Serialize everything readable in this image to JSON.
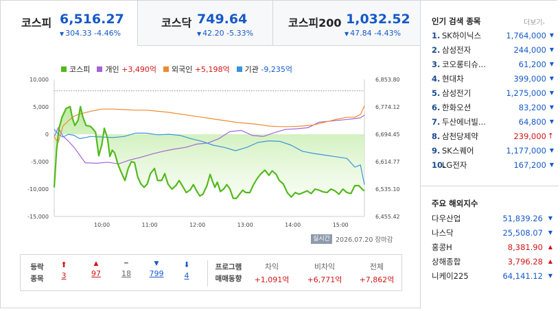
{
  "indices": [
    {
      "name": "코스피",
      "value": "6,516.27",
      "change": "304.33",
      "rate": "-4.46%",
      "active": true
    },
    {
      "name": "코스닥",
      "value": "749.64",
      "change": "42.20",
      "rate": "-5.33%",
      "active": false
    },
    {
      "name": "코스피200",
      "value": "1,032.52",
      "change": "47.84",
      "rate": "-4.43%",
      "active": false
    }
  ],
  "legend": [
    {
      "name": "코스피",
      "value": "",
      "color": "#52b91c"
    },
    {
      "name": "개인",
      "value": "+3,490억",
      "color": "#a364d7"
    },
    {
      "name": "외국인",
      "value": "+5,198억",
      "color": "#ef8a2f"
    },
    {
      "name": "기관",
      "value": "-9,235억",
      "color": "#3a93dd"
    }
  ],
  "chart_data": {
    "type": "line",
    "left_axis": {
      "ticks": [
        "10,000",
        "5,000",
        "0",
        "-5,000",
        "-10,000",
        "-15,000"
      ],
      "ylim": [
        -15000,
        10000
      ]
    },
    "right_axis": {
      "ticks": [
        "6,853.80",
        "6,774.12",
        "6,694.45",
        "6,614.77",
        "6,535.10",
        "6,455.42"
      ],
      "ylim": [
        6455.42,
        6853.8
      ]
    },
    "x_ticks": [
      "10:00",
      "11:00",
      "12:00",
      "13:00",
      "14:00",
      "15:00"
    ],
    "x_range_minutes": [
      540,
      930
    ],
    "reference_line_value": 6820.6,
    "series": [
      {
        "name": "코스피",
        "color": "#52b91c",
        "area": true,
        "axis": "right",
        "points": [
          [
            540,
            6540
          ],
          [
            543,
            6650
          ],
          [
            546,
            6712
          ],
          [
            550,
            6745
          ],
          [
            555,
            6770
          ],
          [
            560,
            6775
          ],
          [
            563,
            6740
          ],
          [
            566,
            6720
          ],
          [
            570,
            6735
          ],
          [
            573,
            6775
          ],
          [
            576,
            6745
          ],
          [
            580,
            6720
          ],
          [
            585,
            6718
          ],
          [
            588,
            6712
          ],
          [
            592,
            6700
          ],
          [
            596,
            6632
          ],
          [
            600,
            6665
          ],
          [
            603,
            6712
          ],
          [
            607,
            6682
          ],
          [
            610,
            6630
          ],
          [
            613,
            6648
          ],
          [
            616,
            6640
          ],
          [
            620,
            6608
          ],
          [
            624,
            6585
          ],
          [
            629,
            6560
          ],
          [
            633,
            6595
          ],
          [
            637,
            6615
          ],
          [
            641,
            6612
          ],
          [
            645,
            6570
          ],
          [
            649,
            6550
          ],
          [
            653,
            6540
          ],
          [
            657,
            6550
          ],
          [
            661,
            6580
          ],
          [
            666,
            6595
          ],
          [
            670,
            6560
          ],
          [
            675,
            6560
          ],
          [
            679,
            6580
          ],
          [
            683,
            6550
          ],
          [
            688,
            6535
          ],
          [
            693,
            6545
          ],
          [
            697,
            6560
          ],
          [
            701,
            6545
          ],
          [
            706,
            6525
          ],
          [
            711,
            6533
          ],
          [
            715,
            6548
          ],
          [
            719,
            6530
          ],
          [
            723,
            6515
          ],
          [
            727,
            6520
          ],
          [
            732,
            6545
          ],
          [
            736,
            6578
          ],
          [
            739,
            6558
          ],
          [
            742,
            6540
          ],
          [
            745,
            6555
          ],
          [
            749,
            6528
          ],
          [
            753,
            6535
          ],
          [
            757,
            6548
          ],
          [
            761,
            6535
          ],
          [
            765,
            6508
          ],
          [
            769,
            6508
          ],
          [
            773,
            6520
          ],
          [
            777,
            6532
          ],
          [
            781,
            6525
          ],
          [
            786,
            6525
          ],
          [
            790,
            6545
          ],
          [
            795,
            6565
          ],
          [
            800,
            6580
          ],
          [
            805,
            6590
          ],
          [
            810,
            6575
          ],
          [
            814,
            6588
          ],
          [
            819,
            6578
          ],
          [
            823,
            6560
          ],
          [
            828,
            6550
          ],
          [
            833,
            6525
          ],
          [
            838,
            6512
          ],
          [
            843,
            6525
          ],
          [
            848,
            6520
          ],
          [
            853,
            6525
          ],
          [
            858,
            6530
          ],
          [
            863,
            6522
          ],
          [
            868,
            6535
          ],
          [
            873,
            6532
          ],
          [
            878,
            6527
          ],
          [
            883,
            6525
          ],
          [
            888,
            6535
          ],
          [
            893,
            6530
          ],
          [
            898,
            6520
          ],
          [
            903,
            6535
          ],
          [
            908,
            6525
          ],
          [
            913,
            6522
          ],
          [
            918,
            6545
          ],
          [
            923,
            6545
          ],
          [
            927,
            6535
          ],
          [
            930,
            6530
          ]
        ]
      },
      {
        "name": "개인",
        "color": "#a364d7",
        "area": false,
        "axis": "left",
        "points": [
          [
            540,
            -400
          ],
          [
            545,
            1200
          ],
          [
            551,
            -300
          ],
          [
            558,
            -1300
          ],
          [
            565,
            -2400
          ],
          [
            572,
            -3800
          ],
          [
            579,
            -5200
          ],
          [
            593,
            -5300
          ],
          [
            607,
            -5100
          ],
          [
            621,
            -5400
          ],
          [
            635,
            -4700
          ],
          [
            649,
            -4200
          ],
          [
            663,
            -3600
          ],
          [
            677,
            -3100
          ],
          [
            691,
            -2700
          ],
          [
            705,
            -2400
          ],
          [
            719,
            -1800
          ],
          [
            733,
            -1600
          ],
          [
            747,
            -800
          ],
          [
            761,
            500
          ],
          [
            775,
            700
          ],
          [
            789,
            -200
          ],
          [
            803,
            -400
          ],
          [
            817,
            300
          ],
          [
            831,
            900
          ],
          [
            845,
            1000
          ],
          [
            859,
            1200
          ],
          [
            873,
            2200
          ],
          [
            887,
            2400
          ],
          [
            901,
            2600
          ],
          [
            915,
            2800
          ],
          [
            925,
            3000
          ],
          [
            930,
            3500
          ]
        ]
      },
      {
        "name": "외국인",
        "color": "#ef8a2f",
        "area": false,
        "axis": "left",
        "points": [
          [
            540,
            -500
          ],
          [
            545,
            -1500
          ],
          [
            551,
            1500
          ],
          [
            558,
            2500
          ],
          [
            565,
            3300
          ],
          [
            572,
            3700
          ],
          [
            586,
            4200
          ],
          [
            600,
            4600
          ],
          [
            614,
            4600
          ],
          [
            628,
            4500
          ],
          [
            642,
            4400
          ],
          [
            656,
            4400
          ],
          [
            670,
            4200
          ],
          [
            684,
            4000
          ],
          [
            698,
            3700
          ],
          [
            712,
            3400
          ],
          [
            726,
            3100
          ],
          [
            740,
            2800
          ],
          [
            754,
            2500
          ],
          [
            768,
            2200
          ],
          [
            782,
            2000
          ],
          [
            796,
            1800
          ],
          [
            810,
            1500
          ],
          [
            824,
            1400
          ],
          [
            838,
            1400
          ],
          [
            852,
            1500
          ],
          [
            866,
            1700
          ],
          [
            880,
            2200
          ],
          [
            894,
            2700
          ],
          [
            908,
            3100
          ],
          [
            918,
            3100
          ],
          [
            925,
            3600
          ],
          [
            930,
            5200
          ]
        ]
      },
      {
        "name": "기관",
        "color": "#3a93dd",
        "area": false,
        "axis": "left",
        "points": [
          [
            540,
            900
          ],
          [
            545,
            0
          ],
          [
            551,
            -500
          ],
          [
            558,
            0
          ],
          [
            565,
            -200
          ],
          [
            572,
            -800
          ],
          [
            586,
            -400
          ],
          [
            600,
            -500
          ],
          [
            614,
            -600
          ],
          [
            628,
            -400
          ],
          [
            642,
            200
          ],
          [
            656,
            200
          ],
          [
            670,
            -100
          ],
          [
            684,
            0
          ],
          [
            698,
            -200
          ],
          [
            712,
            -800
          ],
          [
            726,
            -1300
          ],
          [
            740,
            -2000
          ],
          [
            754,
            -2400
          ],
          [
            768,
            -3000
          ],
          [
            782,
            -2400
          ],
          [
            796,
            -1500
          ],
          [
            810,
            -1200
          ],
          [
            824,
            -1300
          ],
          [
            838,
            -2000
          ],
          [
            852,
            -3100
          ],
          [
            866,
            -3500
          ],
          [
            880,
            -3800
          ],
          [
            894,
            -4100
          ],
          [
            908,
            -4400
          ],
          [
            918,
            -6000
          ],
          [
            925,
            -5600
          ],
          [
            930,
            -9200
          ]
        ]
      }
    ]
  },
  "status": {
    "badge": "실시간",
    "datetime": "2026.07.20 장마감"
  },
  "breadth": {
    "label1": "등락",
    "label2": "종목",
    "items": [
      {
        "glyph": "⬆",
        "value": "3",
        "tone": "up"
      },
      {
        "glyph": "▲",
        "value": "97",
        "tone": "up"
      },
      {
        "glyph": "━",
        "value": "18",
        "tone": "flat"
      },
      {
        "glyph": "▼",
        "value": "799",
        "tone": "down"
      },
      {
        "glyph": "⬇",
        "value": "4",
        "tone": "down"
      }
    ]
  },
  "program": {
    "label1": "프로그램",
    "label2": "매매동향",
    "items": [
      {
        "label": "차익",
        "value": "+1,091억"
      },
      {
        "label": "비차익",
        "value": "+6,771억"
      },
      {
        "label": "전체",
        "value": "+7,862억"
      }
    ]
  },
  "popular": {
    "title": "인기 검색 종목",
    "more": "더보기",
    "items": [
      {
        "rank": "1.",
        "name": "SK하이닉스",
        "price": "1,764,000",
        "dir": "down"
      },
      {
        "rank": "2.",
        "name": "삼성전자",
        "price": "244,000",
        "dir": "down"
      },
      {
        "rank": "3.",
        "name": "코오롱티슈...",
        "price": "61,200",
        "dir": "down"
      },
      {
        "rank": "4.",
        "name": "현대차",
        "price": "399,000",
        "dir": "down"
      },
      {
        "rank": "5.",
        "name": "삼성전기",
        "price": "1,275,000",
        "dir": "down"
      },
      {
        "rank": "6.",
        "name": "한화오션",
        "price": "83,200",
        "dir": "down"
      },
      {
        "rank": "7.",
        "name": "두산에너빌...",
        "price": "64,800",
        "dir": "down"
      },
      {
        "rank": "8.",
        "name": "삼천당제약",
        "price": "239,000",
        "dir": "up"
      },
      {
        "rank": "9.",
        "name": "SK스퀘어",
        "price": "1,177,000",
        "dir": "down"
      },
      {
        "rank": "10.",
        "name": "LG전자",
        "price": "167,200",
        "dir": "down"
      }
    ]
  },
  "world": {
    "title": "주요 해외지수",
    "items": [
      {
        "name": "다우산업",
        "price": "51,839.26",
        "dir": "down"
      },
      {
        "name": "나스닥",
        "price": "25,508.07",
        "dir": "down"
      },
      {
        "name": "홍콩H",
        "price": "8,381.90",
        "dir": "up"
      },
      {
        "name": "상해종합",
        "price": "3,796.28",
        "dir": "up"
      },
      {
        "name": "니케이225",
        "price": "64,141.12",
        "dir": "down"
      }
    ]
  }
}
